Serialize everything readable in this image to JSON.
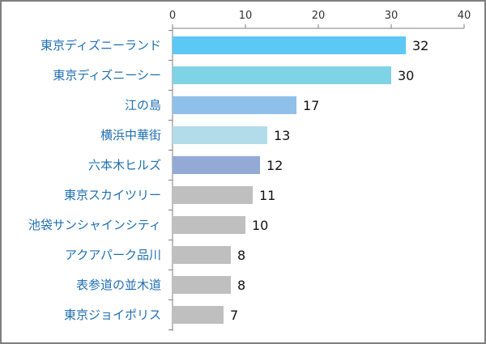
{
  "chart_data": {
    "type": "bar",
    "orientation": "horizontal",
    "categories": [
      "東京ディズニーランド",
      "東京ディズニーシー",
      "江の島",
      "横浜中華街",
      "六本木ヒルズ",
      "東京スカイツリー",
      "池袋サンシャインシティ",
      "アクアパーク品川",
      "表参道の並木道",
      "東京ジョイポリス"
    ],
    "values": [
      32,
      30,
      17,
      13,
      12,
      11,
      10,
      8,
      8,
      7
    ],
    "bar_colors": [
      "#5BC8F5",
      "#7FD3E6",
      "#8FC0EA",
      "#B3DCEA",
      "#93AAD6",
      "#BFBFBF",
      "#BFBFBF",
      "#BFBFBF",
      "#BFBFBF",
      "#BFBFBF"
    ],
    "xticks": [
      "0",
      "10",
      "20",
      "30",
      "40"
    ],
    "xlim": [
      0,
      40
    ],
    "axis_position": "top",
    "grid": false,
    "title": "",
    "xlabel": "",
    "ylabel": ""
  }
}
